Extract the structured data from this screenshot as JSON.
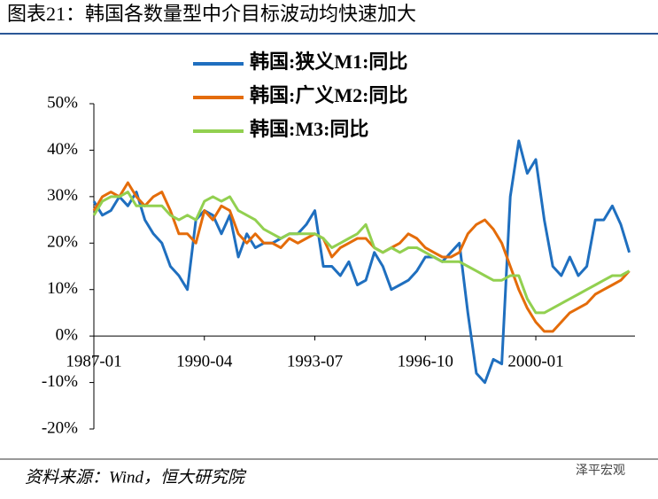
{
  "chart_data": {
    "type": "line",
    "title": "图表21：韩国各数量型中介目标波动均快速加大",
    "source": "资料来源：Wind，恒大研究院",
    "watermark": "泽平宏观",
    "x": [
      "1987-01",
      "1987-04",
      "1987-07",
      "1987-10",
      "1988-01",
      "1988-04",
      "1988-07",
      "1988-10",
      "1989-01",
      "1989-04",
      "1989-07",
      "1989-10",
      "1990-01",
      "1990-04",
      "1990-07",
      "1990-10",
      "1991-01",
      "1991-04",
      "1991-07",
      "1991-10",
      "1992-01",
      "1992-04",
      "1992-07",
      "1992-10",
      "1993-01",
      "1993-04",
      "1993-07",
      "1993-10",
      "1994-01",
      "1994-04",
      "1994-07",
      "1994-10",
      "1995-01",
      "1995-04",
      "1995-07",
      "1995-10",
      "1996-01",
      "1996-04",
      "1996-07",
      "1996-10",
      "1997-01",
      "1997-04",
      "1997-07",
      "1997-10",
      "1998-01",
      "1998-04",
      "1998-07",
      "1998-10",
      "1999-01",
      "1999-04",
      "1999-07",
      "1999-10",
      "2000-01",
      "2000-04",
      "2000-07",
      "2000-10",
      "2001-01",
      "2001-04",
      "2001-07",
      "2001-10",
      "2002-01",
      "2002-04",
      "2002-07",
      "2002-10"
    ],
    "series": [
      {
        "name": "韩国:狭义M1:同比",
        "color": "#1f6fbf",
        "values": [
          29,
          26,
          27,
          30,
          28,
          31,
          25,
          22,
          20,
          15,
          13,
          10,
          25,
          27,
          26,
          22,
          26,
          17,
          22,
          19,
          20,
          20,
          21,
          22,
          22,
          24,
          27,
          15,
          15,
          13,
          16,
          11,
          12,
          18,
          15,
          10,
          11,
          12,
          14,
          17,
          17,
          16,
          18,
          20,
          5,
          -8,
          -10,
          -5,
          -6,
          30,
          42,
          35,
          38,
          25,
          15,
          13,
          17,
          13,
          15,
          25,
          25,
          28,
          24,
          18
        ]
      },
      {
        "name": "韩国:广义M2:同比",
        "color": "#e46c0a",
        "values": [
          27,
          30,
          31,
          30,
          33,
          30,
          28,
          30,
          31,
          27,
          22,
          22,
          20,
          27,
          25,
          28,
          27,
          22,
          20,
          22,
          20,
          20,
          19,
          21,
          20,
          21,
          22,
          21,
          17,
          19,
          20,
          21,
          21,
          19,
          18,
          19,
          20,
          22,
          21,
          19,
          18,
          17,
          17,
          18,
          22,
          24,
          25,
          23,
          20,
          15,
          10,
          6,
          3,
          1,
          1,
          3,
          5,
          6,
          7,
          9,
          10,
          11,
          12,
          14
        ]
      },
      {
        "name": "韩国:M3:同比",
        "color": "#92d050",
        "values": [
          26,
          29,
          30,
          30,
          31,
          28,
          28,
          28,
          28,
          26,
          25,
          26,
          25,
          29,
          30,
          29,
          30,
          27,
          26,
          25,
          23,
          22,
          21,
          22,
          22,
          22,
          22,
          21,
          19,
          20,
          21,
          22,
          24,
          19,
          18,
          19,
          18,
          19,
          19,
          18,
          17,
          16,
          16,
          16,
          15,
          14,
          13,
          12,
          12,
          13,
          13,
          8,
          5,
          5,
          6,
          7,
          8,
          9,
          10,
          11,
          12,
          13,
          13,
          14
        ]
      }
    ],
    "xlim": [
      "1987-01",
      "2002-12"
    ],
    "xticks": [
      "1987-01",
      "1990-04",
      "1993-07",
      "1996-10",
      "2000-01"
    ],
    "ylim": [
      -20,
      50
    ],
    "yticks": [
      {
        "value": -20,
        "label": "-20%"
      },
      {
        "value": -10,
        "label": "-10%"
      },
      {
        "value": 0,
        "label": "0%"
      },
      {
        "value": 10,
        "label": "10%"
      },
      {
        "value": 20,
        "label": "20%"
      },
      {
        "value": 30,
        "label": "30%"
      },
      {
        "value": 40,
        "label": "40%"
      },
      {
        "value": 50,
        "label": "50%"
      }
    ]
  }
}
